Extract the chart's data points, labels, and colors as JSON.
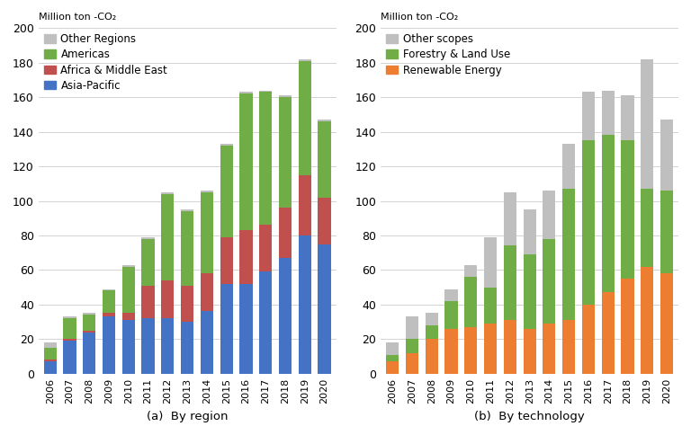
{
  "years": [
    "2006",
    "2007",
    "2008",
    "2009",
    "2010",
    "2011",
    "2012",
    "2013",
    "2014",
    "2015",
    "2016",
    "2017",
    "2018",
    "2019",
    "2020"
  ],
  "region": {
    "asia_pacific": [
      7,
      19,
      24,
      33,
      31,
      32,
      32,
      30,
      36,
      52,
      52,
      59,
      67,
      80,
      75
    ],
    "africa_me": [
      1,
      1,
      1,
      2,
      4,
      19,
      22,
      21,
      22,
      27,
      31,
      27,
      29,
      35,
      27
    ],
    "americas": [
      7,
      12,
      9,
      13,
      27,
      27,
      50,
      43,
      47,
      53,
      79,
      77,
      64,
      66,
      44
    ],
    "other_regions": [
      3,
      1,
      1,
      1,
      1,
      1,
      1,
      1,
      1,
      1,
      1,
      1,
      1,
      1,
      1
    ]
  },
  "region_colors": {
    "asia_pacific": "#4472c4",
    "africa_me": "#c0504d",
    "americas": "#70ad47",
    "other_regions": "#bfbfbf"
  },
  "region_labels": [
    "Asia-Pacific",
    "Africa & Middle East",
    "Americas",
    "Other Regions"
  ],
  "technology": {
    "renewable_energy": [
      7,
      12,
      20,
      26,
      27,
      29,
      31,
      26,
      29,
      31,
      40,
      47,
      55,
      62,
      58
    ],
    "forestry_land": [
      4,
      8,
      8,
      16,
      29,
      21,
      43,
      43,
      49,
      76,
      95,
      91,
      80,
      45,
      48
    ],
    "other_scopes": [
      7,
      13,
      7,
      7,
      7,
      29,
      31,
      26,
      28,
      26,
      28,
      26,
      26,
      75,
      41
    ]
  },
  "tech_colors": {
    "renewable_energy": "#ed7d31",
    "forestry_land": "#70ad47",
    "other_scopes": "#bfbfbf"
  },
  "tech_labels": [
    "Renewable Energy",
    "Forestry & Land Use",
    "Other scopes"
  ],
  "ylim": [
    0,
    200
  ],
  "yticks": [
    0,
    20,
    40,
    60,
    80,
    100,
    120,
    140,
    160,
    180,
    200
  ],
  "ylabel": "Million ton -CO₂",
  "title_a": "(a)  By region",
  "title_b": "(b)  By technology",
  "bar_width": 0.65
}
